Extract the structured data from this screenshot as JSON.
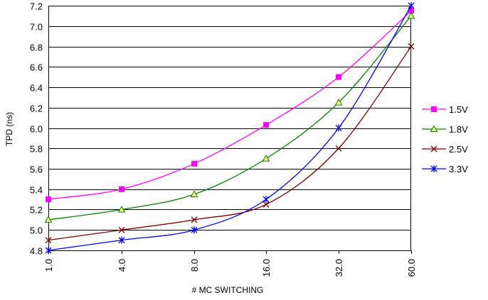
{
  "chart_data": {
    "type": "line",
    "title": "",
    "xlabel": "# MC SWITCHING",
    "ylabel": "TPD (ns)",
    "categories": [
      "1.0",
      "4.0",
      "8.0",
      "16.0",
      "32.0",
      "60.0"
    ],
    "ylim": [
      4.8,
      7.2
    ],
    "ytick_step": 0.2,
    "grid": true,
    "legend_position": "right",
    "series": [
      {
        "name": "1.5V",
        "values": [
          5.3,
          5.4,
          5.65,
          6.03,
          6.5,
          7.15
        ],
        "color": "#FF00FF",
        "marker": "square"
      },
      {
        "name": "1.8V",
        "values": [
          5.1,
          5.2,
          5.35,
          5.7,
          6.25,
          7.1
        ],
        "color": "#008000",
        "marker": "triangle"
      },
      {
        "name": "2.5V",
        "values": [
          4.9,
          5.0,
          5.1,
          5.25,
          5.8,
          6.8
        ],
        "color": "#800000",
        "marker": "x"
      },
      {
        "name": "3.3V",
        "values": [
          4.8,
          4.9,
          5.0,
          5.3,
          6.0,
          7.2
        ],
        "color": "#0000FF",
        "marker": "star"
      }
    ]
  }
}
